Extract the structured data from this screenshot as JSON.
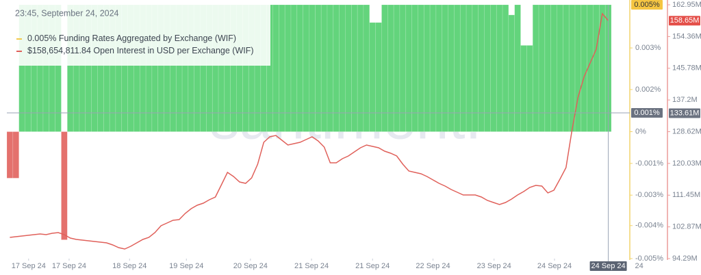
{
  "chart_data": {
    "type": "combo",
    "timestamp": "23:45, September 24, 2024",
    "watermark": "santiment.",
    "xlim": [
      -0.5,
      99.5
    ],
    "xticks": [
      {
        "value": 3.1,
        "label": "17 Sep 24"
      },
      {
        "value": 9.8,
        "label": "17 Sep 24"
      },
      {
        "value": 19.8,
        "label": "18 Sep 24"
      },
      {
        "value": 29.2,
        "label": "19 Sep 24"
      },
      {
        "value": 39.8,
        "label": "20 Sep 24"
      },
      {
        "value": 49.9,
        "label": "21 Sep 24"
      },
      {
        "value": 60,
        "label": "21 Sep 24"
      },
      {
        "value": 70,
        "label": "22 Sep 24"
      },
      {
        "value": 80.1,
        "label": "23 Sep 24"
      },
      {
        "value": 90.1,
        "label": "24 Sep 24"
      },
      {
        "value": 104.1,
        "label": "24"
      }
    ],
    "ylim": [
      -0.005,
      0.005
    ],
    "yticks": [
      {
        "value": 0.0033,
        "label": "0.003%"
      },
      {
        "value": 0.00166,
        "label": "0.002%"
      },
      {
        "value": 0,
        "label": "0%"
      },
      {
        "value": -0.00125,
        "label": "-0.001%"
      },
      {
        "value": -0.0025,
        "label": "-0.003%"
      },
      {
        "value": -0.0037,
        "label": "-0.004%"
      },
      {
        "value": -0.005,
        "label": "-0.005%"
      }
    ],
    "y2lim": [
      94.29,
      162.95
    ],
    "y2ticks": [
      {
        "value": 162.95,
        "label": "162.95M"
      },
      {
        "value": 154.36,
        "label": "154.36M"
      },
      {
        "value": 145.78,
        "label": "145.78M"
      },
      {
        "value": 137.2,
        "label": "137.2M"
      },
      {
        "value": 128.62,
        "label": "128.62M"
      },
      {
        "value": 120.03,
        "label": "120.03M"
      },
      {
        "value": 111.45,
        "label": "111.45M"
      },
      {
        "value": 102.87,
        "label": "102.87M"
      },
      {
        "value": 94.29,
        "label": "94.29M"
      }
    ],
    "crosshair": {
      "x": 99,
      "x_label": "24 Sep 24",
      "y": 0.00074,
      "y_label": "0.001%",
      "y2": 133.61,
      "y2_label": "133.61M"
    },
    "series": [
      {
        "name": "Funding Rates Aggregated by Exchange (WIF)",
        "type": "bar",
        "color": "#63d47c",
        "negative_color": "#e4716d",
        "legend_color": "#f2c94c",
        "legend_value": "0.005%",
        "last_value_label": "0.005%",
        "values": [
          -0.00183,
          -0.00183,
          0.005,
          0.005,
          0.005,
          0.005,
          0.005,
          0.005,
          0.005,
          -0.00426,
          0.005,
          0.005,
          0.005,
          0.005,
          0.005,
          0.005,
          0.005,
          0.005,
          0.005,
          0.005,
          0.005,
          0.005,
          0.005,
          0.005,
          0.005,
          0.005,
          0.005,
          0.005,
          0.005,
          0.005,
          0.005,
          0.005,
          0.005,
          0.005,
          0.005,
          0.005,
          0.005,
          0.005,
          0.005,
          0.005,
          0.005,
          0.005,
          0.005,
          0.005,
          0.005,
          0.005,
          0.005,
          0.005,
          0.005,
          0.005,
          0.005,
          0.005,
          0.005,
          0.005,
          0.005,
          0.005,
          0.005,
          0.005,
          0.005,
          0.005,
          0.0043,
          0.0043,
          0.005,
          0.005,
          0.005,
          0.005,
          0.005,
          0.005,
          0.005,
          0.005,
          0.005,
          0.005,
          0.005,
          0.005,
          0.005,
          0.005,
          0.005,
          0.005,
          0.005,
          0.005,
          0.005,
          0.005,
          0.005,
          0.0046,
          0.005,
          0.0034,
          0.0034,
          0.005,
          0.005,
          0.005,
          0.005,
          0.005,
          0.005,
          0.005,
          0.005,
          0.005,
          0.005,
          0.005,
          0.005,
          0.005
        ]
      },
      {
        "name": "Open Interest in USD per Exchange (WIF)",
        "type": "line",
        "axis": "y2",
        "color": "#e0605a",
        "legend_value": "$158,654,811.84",
        "last_value_label": "158.65M",
        "values": [
          100.03,
          100.21,
          100.4,
          100.58,
          100.77,
          100.95,
          100.77,
          101.14,
          101.32,
          100.77,
          99.84,
          99.47,
          99.29,
          99.1,
          98.92,
          98.73,
          98.55,
          97.99,
          97.25,
          96.88,
          97.62,
          98.55,
          99.47,
          100.03,
          101.32,
          103.17,
          103.91,
          104.65,
          104.84,
          106.5,
          107.8,
          108.72,
          109.28,
          110.21,
          110.95,
          114.28,
          117.61,
          116.5,
          115.02,
          114.65,
          116.13,
          119.83,
          125.75,
          127.23,
          127.6,
          126.31,
          125.01,
          125.38,
          125.75,
          126.49,
          127.23,
          126.12,
          124.46,
          120.2,
          120.2,
          121.31,
          122.05,
          123.16,
          124.27,
          125.01,
          124.64,
          124.27,
          123.35,
          122.79,
          122.05,
          119.83,
          117.98,
          117.61,
          117.24,
          116.5,
          115.57,
          114.65,
          113.91,
          112.98,
          112.24,
          111.5,
          111.5,
          111.5,
          110.95,
          110.02,
          109.46,
          108.91,
          109.46,
          110.39,
          111.5,
          112.43,
          113.54,
          114.09,
          113.91,
          112.06,
          112.8,
          115.76,
          118.9,
          129.08,
          137.97,
          143.52,
          147.22,
          150.92,
          160.54,
          158.65481184
        ]
      }
    ]
  }
}
